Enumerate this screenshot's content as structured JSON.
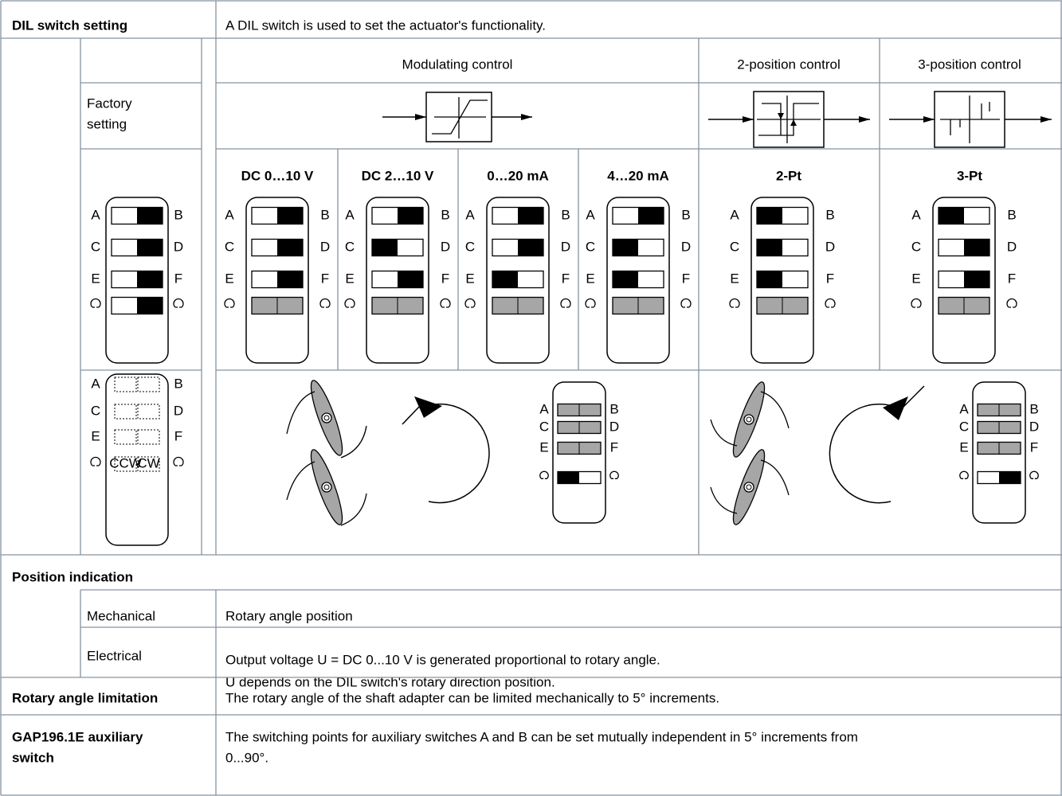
{
  "dil_switch_setting": {
    "label": "DIL switch setting",
    "description": "A DIL switch is used to set the actuator's functionality.",
    "control_types": [
      "Modulating control",
      "2-position control",
      "3-position control"
    ],
    "factory_setting": [
      "Factory",
      "setting"
    ],
    "modes": [
      "DC 0…10 V",
      "DC 2…10 V",
      "0…20 mA",
      "4…20 mA",
      "2-Pt",
      "3-Pt"
    ],
    "switch_letters": {
      "left": [
        "A",
        "C",
        "E"
      ],
      "right": [
        "B",
        "D",
        "F"
      ]
    },
    "rotation_labels": [
      "CCW",
      "CW"
    ]
  },
  "position_indication": {
    "label": "Position indication",
    "mechanical": {
      "label": "Mechanical",
      "text": "Rotary angle position"
    },
    "electrical": {
      "label": "Electrical",
      "lines": [
        "Output voltage U = DC 0...10 V is generated proportional to rotary angle.",
        "U depends on the DIL switch's rotary direction position."
      ]
    }
  },
  "rotary_angle_limitation": {
    "label": "Rotary angle limitation",
    "text": "The rotary angle of the shaft adapter can be limited mechanically to 5° increments."
  },
  "auxiliary_switch": {
    "label": [
      "GAP196.1E auxiliary",
      "switch"
    ],
    "lines": [
      "The switching points for auxiliary switches A and B can be set mutually independent in 5° increments from",
      "0...90°."
    ]
  }
}
